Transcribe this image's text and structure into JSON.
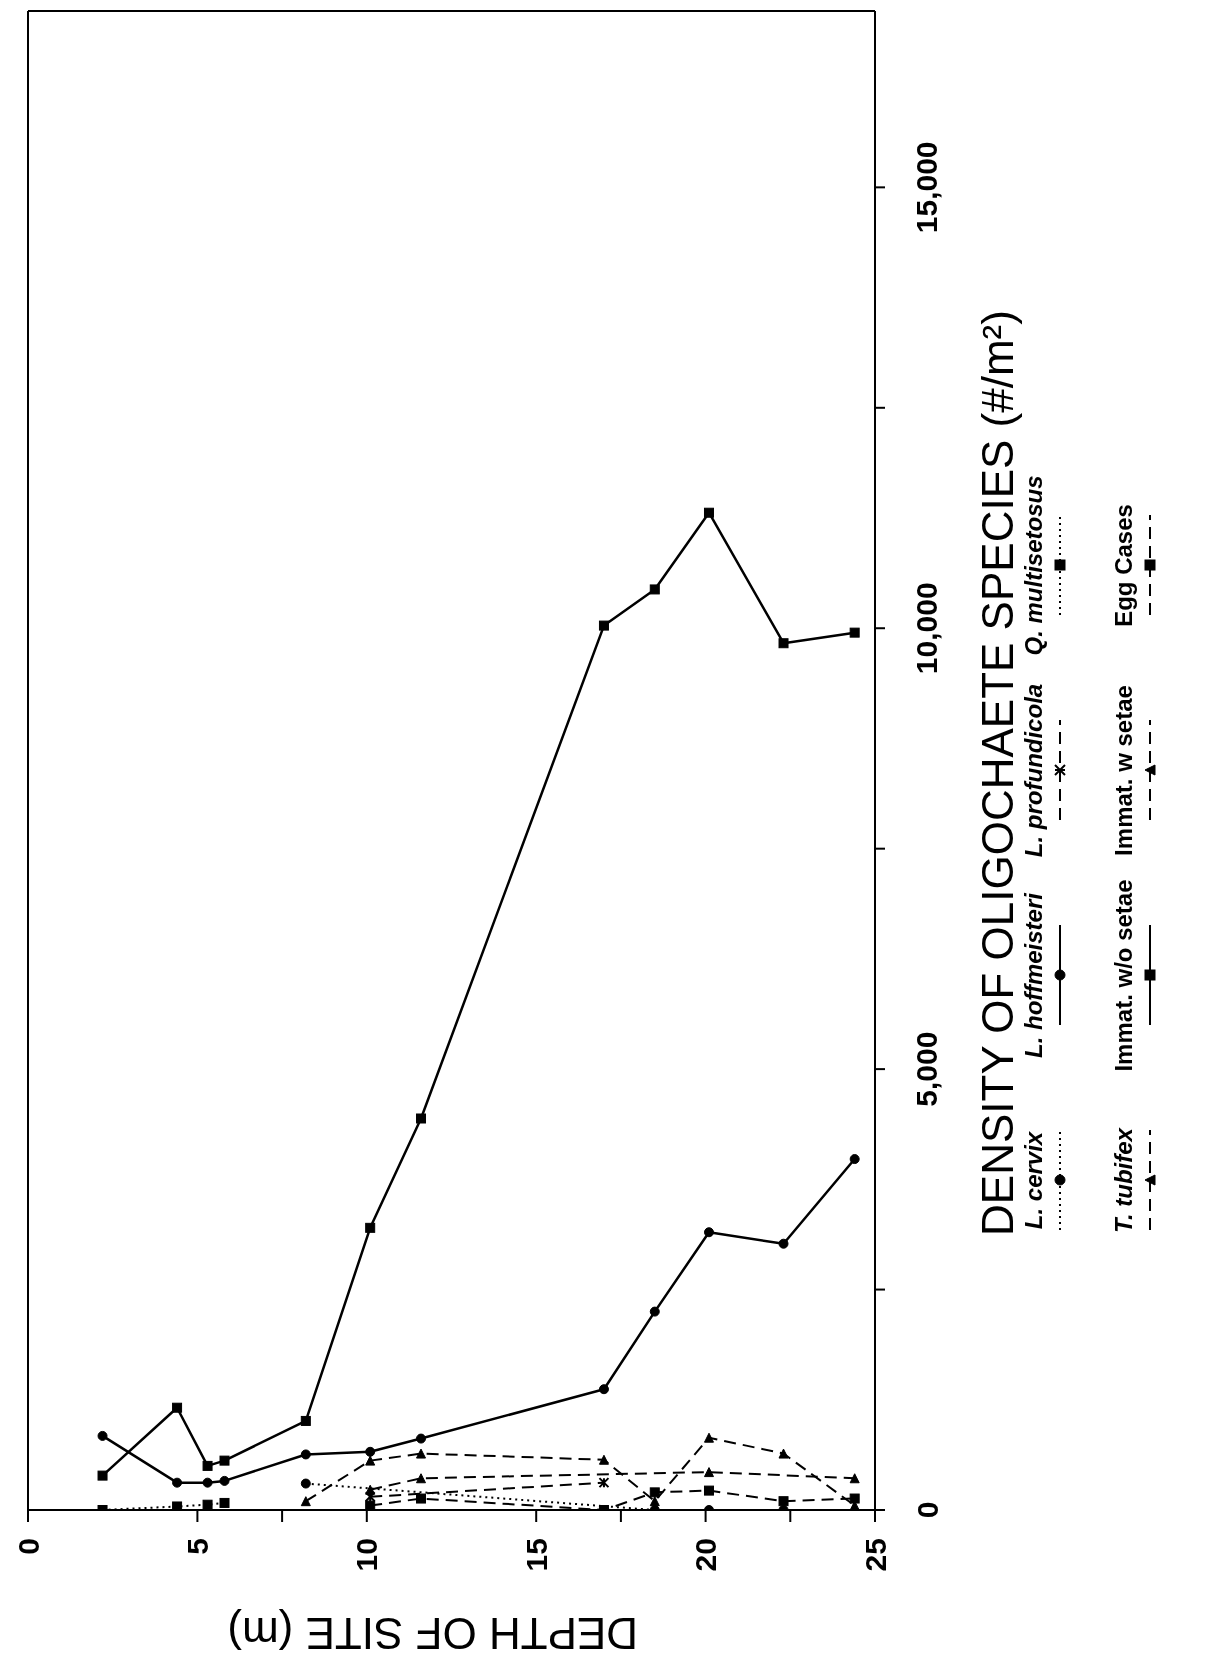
{
  "chart_data": {
    "type": "line",
    "xlabel": "DEPTH OF SITE (m)",
    "ylabel": "DENSITY OF OLIGOCHAETE SPECIES (#/m²)",
    "x": [
      2.2,
      4.4,
      5.3,
      5.8,
      8.2,
      10.1,
      11.6,
      17.0,
      18.5,
      20.1,
      22.3,
      24.4
    ],
    "xlim": [
      0,
      25
    ],
    "xticks": [
      0,
      5,
      10,
      15,
      20,
      25,
      {
        "value": 7.5,
        "label": null
      },
      {
        "value": 17.5,
        "label": null
      },
      {
        "value": 22.5,
        "label": null
      }
    ],
    "ylim": [
      0,
      17000
    ],
    "yticks": [
      0,
      {
        "value": 5000,
        "label": "5,000"
      },
      {
        "value": 10000,
        "label": "10,000"
      },
      {
        "value": 15000,
        "label": "15,000"
      },
      {
        "value": 2500,
        "label": null
      },
      {
        "value": 7500,
        "label": null
      },
      {
        "value": 12500,
        "label": null
      }
    ],
    "legend": "right",
    "series": [
      {
        "name": "L. cervix",
        "color": "#000000",
        "marker": "circle",
        "line_style": "dotted",
        "values": [
          null,
          null,
          null,
          null,
          300,
          null,
          null,
          null,
          0,
          0,
          0,
          null
        ]
      },
      {
        "name": "L. hoffmeisteri",
        "color": "#000000",
        "marker": "circle",
        "line_style": "solid",
        "values": [
          840,
          310,
          310,
          330,
          630,
          660,
          810,
          1370,
          2250,
          3150,
          3020,
          3980
        ]
      },
      {
        "name": "L. profundicola",
        "color": "#000000",
        "marker": "cross",
        "line_style": "dashed",
        "values": [
          null,
          null,
          null,
          null,
          null,
          150,
          null,
          310,
          null,
          null,
          null,
          null
        ]
      },
      {
        "name": "Q. multisetosus",
        "color": "#000000",
        "marker": "square",
        "line_style": "dotted",
        "values": [
          0,
          40,
          60,
          80,
          null,
          null,
          null,
          null,
          null,
          null,
          null,
          null
        ]
      },
      {
        "name": "T. tubifex",
        "color": "#000000",
        "marker": "triangle",
        "line_style": "dashed",
        "values": [
          null,
          null,
          null,
          null,
          null,
          230,
          360,
          null,
          null,
          430,
          null,
          360
        ]
      },
      {
        "name": "Immat. w/o setae",
        "color": "#000000",
        "marker": "square",
        "line_style": "solid",
        "values": [
          390,
          1160,
          500,
          560,
          1010,
          3200,
          4440,
          10030,
          10440,
          11310,
          9830,
          9950
        ]
      },
      {
        "name": "Immat. w setae",
        "color": "#000000",
        "marker": "triangle",
        "line_style": "dashed",
        "values": [
          null,
          null,
          null,
          null,
          100,
          560,
          640,
          570,
          100,
          820,
          640,
          50
        ]
      },
      {
        "name": "Egg Cases",
        "color": "#000000",
        "marker": "square",
        "line_style": "dashed",
        "values": [
          null,
          null,
          null,
          null,
          null,
          50,
          130,
          0,
          200,
          220,
          100,
          130
        ]
      }
    ]
  }
}
